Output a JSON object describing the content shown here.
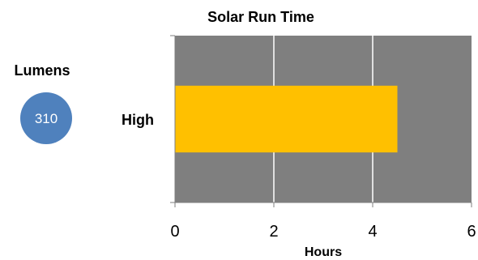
{
  "side_panel": {
    "title": "Lumens",
    "badge_value": "310",
    "badge_color": "#4f81bd"
  },
  "chart_data": {
    "type": "bar",
    "orientation": "horizontal",
    "title": "Solar Run Time",
    "categories": [
      "High"
    ],
    "values": [
      4.5
    ],
    "xlabel": "Hours",
    "ylabel": "",
    "xlim": [
      0,
      6
    ],
    "x_ticks": [
      0,
      2,
      4,
      6
    ],
    "grid": true,
    "legend": "none",
    "colors": {
      "plot_background": "#7f7f7f",
      "bar": "#ffc000",
      "gridline": "#ffffff"
    }
  }
}
